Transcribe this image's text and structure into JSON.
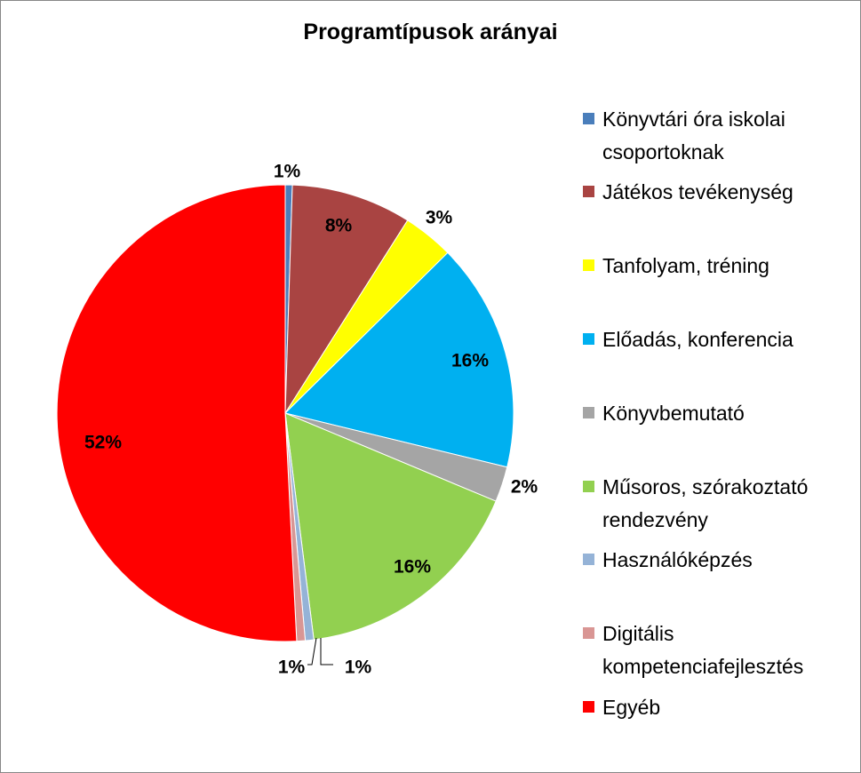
{
  "chart_data": {
    "type": "pie",
    "title": "Programtípusok arányai",
    "slices": [
      {
        "name": "Könyvtári óra iskolai csoportoknak",
        "value": 1,
        "label": "1%",
        "color": "#4a7ebb"
      },
      {
        "name": "Játékos tevékenység",
        "value": 8,
        "label": "8%",
        "color": "#a94442"
      },
      {
        "name": "Tanfolyam, tréning",
        "value": 3,
        "label": "3%",
        "color": "#ffff00"
      },
      {
        "name": "Előadás, konferencia",
        "value": 16,
        "label": "16%",
        "color": "#00b0f0"
      },
      {
        "name": "Könyvbemutató",
        "value": 2,
        "label": "2%",
        "color": "#a5a5a5"
      },
      {
        "name": "Műsoros, szórakoztató rendezvény",
        "value": 16,
        "label": "16%",
        "color": "#92d050"
      },
      {
        "name": "Használóképzés",
        "value": 1,
        "label": "1%",
        "color": "#95b3d7"
      },
      {
        "name": "Digitális kompetenciafejlesztés",
        "value": 1,
        "label": "1%",
        "color": "#d99694"
      },
      {
        "name": "Egyéb",
        "value": 52,
        "label": "52%",
        "color": "#ff0000"
      }
    ],
    "legend": "right"
  }
}
